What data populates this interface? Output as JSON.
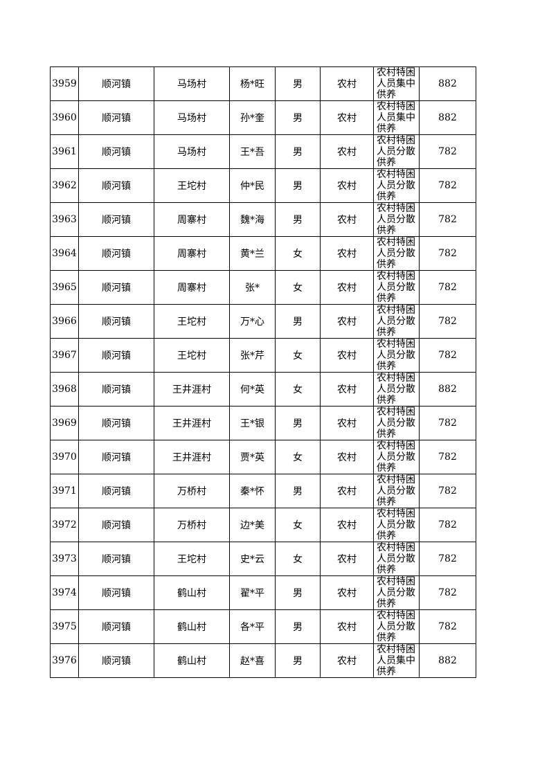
{
  "table": {
    "rows": [
      [
        3959,
        "顺河镇",
        "马场村",
        "杨*旺",
        "男",
        "农村",
        "农村特困人员集中供养",
        882
      ],
      [
        3960,
        "顺河镇",
        "马场村",
        "孙*奎",
        "男",
        "农村",
        "农村特困人员集中供养",
        882
      ],
      [
        3961,
        "顺河镇",
        "马场村",
        "王*吾",
        "男",
        "农村",
        "农村特困人员分散供养",
        782
      ],
      [
        3962,
        "顺河镇",
        "王坨村",
        "仲*民",
        "男",
        "农村",
        "农村特困人员分散供养",
        782
      ],
      [
        3963,
        "顺河镇",
        "周寨村",
        "魏*海",
        "男",
        "农村",
        "农村特困人员分散供养",
        782
      ],
      [
        3964,
        "顺河镇",
        "周寨村",
        "黄*兰",
        "女",
        "农村",
        "农村特困人员分散供养",
        782
      ],
      [
        3965,
        "顺河镇",
        "周寨村",
        "张*",
        "女",
        "农村",
        "农村特困人员分散供养",
        782
      ],
      [
        3966,
        "顺河镇",
        "王坨村",
        "万*心",
        "男",
        "农村",
        "农村特困人员分散供养",
        782
      ],
      [
        3967,
        "顺河镇",
        "王坨村",
        "张*芹",
        "女",
        "农村",
        "农村特困人员分散供养",
        782
      ],
      [
        3968,
        "顺河镇",
        "王井涯村",
        "何*英",
        "女",
        "农村",
        "农村特困人员分散供养",
        882
      ],
      [
        3969,
        "顺河镇",
        "王井涯村",
        "王*银",
        "男",
        "农村",
        "农村特困人员分散供养",
        782
      ],
      [
        3970,
        "顺河镇",
        "王井涯村",
        "贾*英",
        "女",
        "农村",
        "农村特困人员分散供养",
        782
      ],
      [
        3971,
        "顺河镇",
        "万桥村",
        "秦*怀",
        "男",
        "农村",
        "农村特困人员分散供养",
        782
      ],
      [
        3972,
        "顺河镇",
        "万桥村",
        "边*美",
        "女",
        "农村",
        "农村特困人员分散供养",
        782
      ],
      [
        3973,
        "顺河镇",
        "王坨村",
        "史*云",
        "女",
        "农村",
        "农村特困人员分散供养",
        782
      ],
      [
        3974,
        "顺河镇",
        "鹤山村",
        "翟*平",
        "男",
        "农村",
        "农村特困人员分散供养",
        782
      ],
      [
        3975,
        "顺河镇",
        "鹤山村",
        "各*平",
        "男",
        "农村",
        "农村特困人员分散供养",
        782
      ],
      [
        3976,
        "顺河镇",
        "鹤山村",
        "赵*喜",
        "男",
        "农村",
        "农村特困人员集中供养",
        882
      ]
    ]
  }
}
